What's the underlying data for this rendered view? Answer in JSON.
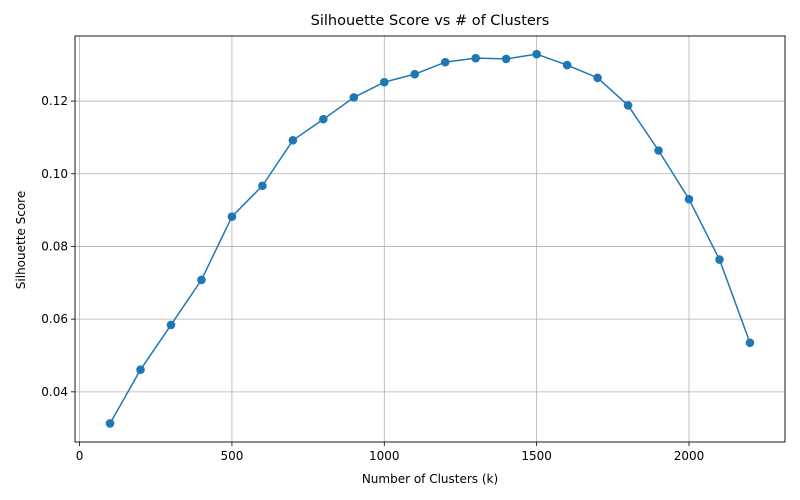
{
  "chart_data": {
    "type": "line",
    "title": "Silhouette Score vs # of Clusters",
    "xlabel": "Number of Clusters (k)",
    "ylabel": "Silhouette Score",
    "xlim": [
      -15,
      2315
    ],
    "ylim": [
      0.0262,
      0.1379
    ],
    "xticks": [
      0,
      500,
      1000,
      1500,
      2000
    ],
    "xtick_labels": [
      "0",
      "500",
      "1000",
      "1500",
      "2000"
    ],
    "yticks": [
      0.04,
      0.06,
      0.08,
      0.1,
      0.12
    ],
    "ytick_labels": [
      "0.04",
      "0.06",
      "0.08",
      "0.10",
      "0.12"
    ],
    "grid": true,
    "marker": "circle",
    "color": "#1f77b4",
    "series": [
      {
        "x": [
          100,
          200,
          300,
          400,
          500,
          600,
          700,
          800,
          900,
          1000,
          1100,
          1200,
          1300,
          1400,
          1500,
          1600,
          1700,
          1800,
          1900,
          2000,
          2100,
          2200
        ],
        "y": [
          0.0313,
          0.0461,
          0.0584,
          0.0708,
          0.0882,
          0.0967,
          0.1092,
          0.115,
          0.121,
          0.1252,
          0.1274,
          0.1307,
          0.1318,
          0.1316,
          0.1329,
          0.1299,
          0.1264,
          0.1188,
          0.1064,
          0.093,
          0.0764,
          0.0535
        ]
      }
    ]
  }
}
